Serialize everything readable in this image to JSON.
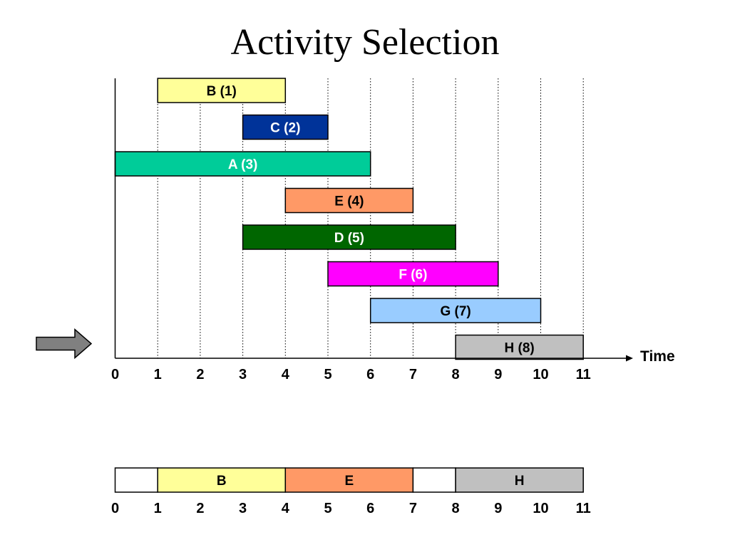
{
  "title": "Activity Selection",
  "axis": {
    "label": "Time",
    "ticks": [
      "0",
      "1",
      "2",
      "3",
      "4",
      "5",
      "6",
      "7",
      "8",
      "9",
      "10",
      "11"
    ]
  },
  "colors": {
    "grid": "#000000",
    "pointer_arrow": "#808080"
  },
  "pointer_arrow": {
    "icon": "right-arrow-icon",
    "row": 8
  },
  "activities": [
    {
      "label": "B (1)",
      "start": 1,
      "end": 4,
      "fill": "#ffff99",
      "text": "#000000"
    },
    {
      "label": "C (2)",
      "start": 3,
      "end": 5,
      "fill": "#003399",
      "text": "#ffffff"
    },
    {
      "label": "A (3)",
      "start": 0,
      "end": 6,
      "fill": "#00cc99",
      "text": "#ffffff"
    },
    {
      "label": "E (4)",
      "start": 4,
      "end": 7,
      "fill": "#ff9966",
      "text": "#000000"
    },
    {
      "label": "D (5)",
      "start": 3,
      "end": 8,
      "fill": "#006600",
      "text": "#ffffff"
    },
    {
      "label": "F (6)",
      "start": 5,
      "end": 9,
      "fill": "#ff00ff",
      "text": "#ffffff"
    },
    {
      "label": "G (7)",
      "start": 6,
      "end": 10,
      "fill": "#99ccff",
      "text": "#000000"
    },
    {
      "label": "H (8)",
      "start": 8,
      "end": 11,
      "fill": "#c0c0c0",
      "text": "#000000"
    }
  ],
  "selection": {
    "ticks": [
      "0",
      "1",
      "2",
      "3",
      "4",
      "5",
      "6",
      "7",
      "8",
      "9",
      "10",
      "11"
    ],
    "segments": [
      {
        "label": "",
        "start": 0,
        "end": 1,
        "fill": "#ffffff"
      },
      {
        "label": "B",
        "start": 1,
        "end": 4,
        "fill": "#ffff99"
      },
      {
        "label": "E",
        "start": 4,
        "end": 7,
        "fill": "#ff9966"
      },
      {
        "label": "",
        "start": 7,
        "end": 8,
        "fill": "#ffffff"
      },
      {
        "label": "H",
        "start": 8,
        "end": 11,
        "fill": "#c0c0c0"
      }
    ]
  }
}
